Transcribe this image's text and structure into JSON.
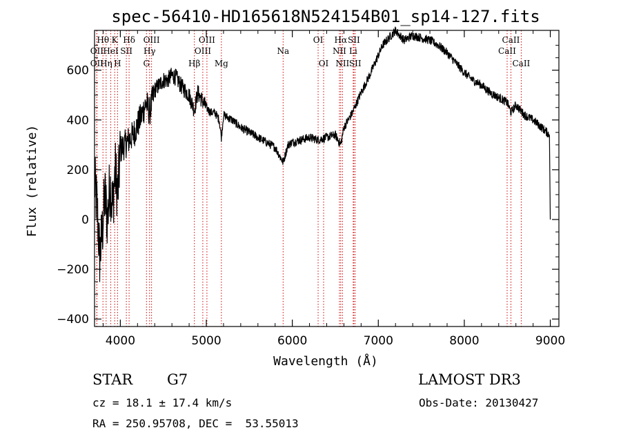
{
  "chart_data": {
    "type": "line",
    "title": "spec-56410-HD165618N524154B01_sp14-127.fits",
    "xlabel": "Wavelength (Å)",
    "ylabel": "Flux (relative)",
    "xlim": [
      3700,
      9100
    ],
    "ylim": [
      -430,
      760
    ],
    "xticks": [
      4000,
      5000,
      6000,
      7000,
      8000,
      9000
    ],
    "xtick_labels": [
      "4000",
      "5000",
      "6000",
      "7000",
      "8000",
      "9000"
    ],
    "yticks": [
      -400,
      -200,
      0,
      200,
      400,
      600
    ],
    "ytick_labels": [
      "−400",
      "−200",
      "0",
      "200",
      "400",
      "600"
    ],
    "series": [
      {
        "name": "flux",
        "x": [
          3700,
          3730,
          3760,
          3790,
          3820,
          3850,
          3880,
          3910,
          3940,
          3970,
          4000,
          4050,
          4100,
          4150,
          4200,
          4250,
          4300,
          4340,
          4400,
          4450,
          4500,
          4550,
          4600,
          4650,
          4700,
          4750,
          4800,
          4860,
          4900,
          4950,
          5000,
          5050,
          5100,
          5150,
          5175,
          5200,
          5300,
          5400,
          5500,
          5600,
          5700,
          5800,
          5893,
          5950,
          6000,
          6100,
          6200,
          6300,
          6400,
          6500,
          6563,
          6600,
          6700,
          6800,
          6900,
          7000,
          7050,
          7100,
          7200,
          7300,
          7400,
          7500,
          7600,
          7700,
          7800,
          7900,
          8000,
          8100,
          8200,
          8300,
          8400,
          8500,
          8542,
          8600,
          8700,
          8800,
          8900,
          8990,
          9000
        ],
        "y": [
          150,
          50,
          -150,
          -50,
          100,
          0,
          150,
          50,
          200,
          100,
          280,
          300,
          320,
          340,
          380,
          420,
          470,
          430,
          520,
          540,
          560,
          560,
          580,
          570,
          540,
          520,
          500,
          440,
          510,
          480,
          450,
          430,
          430,
          400,
          330,
          420,
          400,
          370,
          350,
          330,
          310,
          290,
          230,
          300,
          310,
          320,
          330,
          320,
          330,
          340,
          300,
          370,
          430,
          510,
          580,
          660,
          700,
          720,
          760,
          720,
          740,
          730,
          720,
          700,
          670,
          630,
          590,
          560,
          540,
          510,
          490,
          470,
          430,
          460,
          420,
          400,
          370,
          340,
          0
        ]
      }
    ],
    "lines": [
      {
        "name": "OII",
        "wl": 3727,
        "row": 3
      },
      {
        "name": "Hθ",
        "wl": 3798,
        "row": 1
      },
      {
        "name": "OII",
        "wl": 3727,
        "row": 2
      },
      {
        "name": "Hη",
        "wl": 3835,
        "row": 3
      },
      {
        "name": "HeI",
        "wl": 3889,
        "row": 2
      },
      {
        "name": "K",
        "wl": 3934,
        "row": 1
      },
      {
        "name": "SII",
        "wl": 4070,
        "row": 2
      },
      {
        "name": "H",
        "wl": 3968,
        "row": 3
      },
      {
        "name": "Hδ",
        "wl": 4102,
        "row": 1
      },
      {
        "name": "OIII",
        "wl": 4363,
        "row": 1
      },
      {
        "name": "Hγ",
        "wl": 4340,
        "row": 2
      },
      {
        "name": "G",
        "wl": 4304,
        "row": 3
      },
      {
        "name": "Hβ",
        "wl": 4861,
        "row": 3
      },
      {
        "name": "OIII",
        "wl": 4959,
        "row": 2
      },
      {
        "name": "OIII",
        "wl": 5007,
        "row": 1
      },
      {
        "name": "Mg",
        "wl": 5175,
        "row": 3
      },
      {
        "name": "Na",
        "wl": 5893,
        "row": 2
      },
      {
        "name": "OI",
        "wl": 6300,
        "row": 1
      },
      {
        "name": "OI",
        "wl": 6364,
        "row": 3
      },
      {
        "name": "Hα",
        "wl": 6563,
        "row": 1
      },
      {
        "name": "NII",
        "wl": 6548,
        "row": 2
      },
      {
        "name": "NII",
        "wl": 6583,
        "row": 3
      },
      {
        "name": "SII",
        "wl": 6716,
        "row": 1
      },
      {
        "name": "Li",
        "wl": 6708,
        "row": 2
      },
      {
        "name": "SII",
        "wl": 6731,
        "row": 3
      },
      {
        "name": "CaII",
        "wl": 8498,
        "row": 2
      },
      {
        "name": "CaII",
        "wl": 8542,
        "row": 1
      },
      {
        "name": "CaII",
        "wl": 8662,
        "row": 3
      }
    ]
  },
  "info": {
    "class_label": "STAR",
    "subclass": "G7",
    "survey": "LAMOST DR3",
    "redshift": "cz = 18.1 ± 17.4 km/s",
    "obs_date": "Obs-Date: 20130427",
    "coords": "RA = 250.95708, DEC =  53.55013"
  },
  "colors": {
    "axis": "#000000",
    "spectrum": "#000000",
    "line_marker": "#cc0000"
  }
}
